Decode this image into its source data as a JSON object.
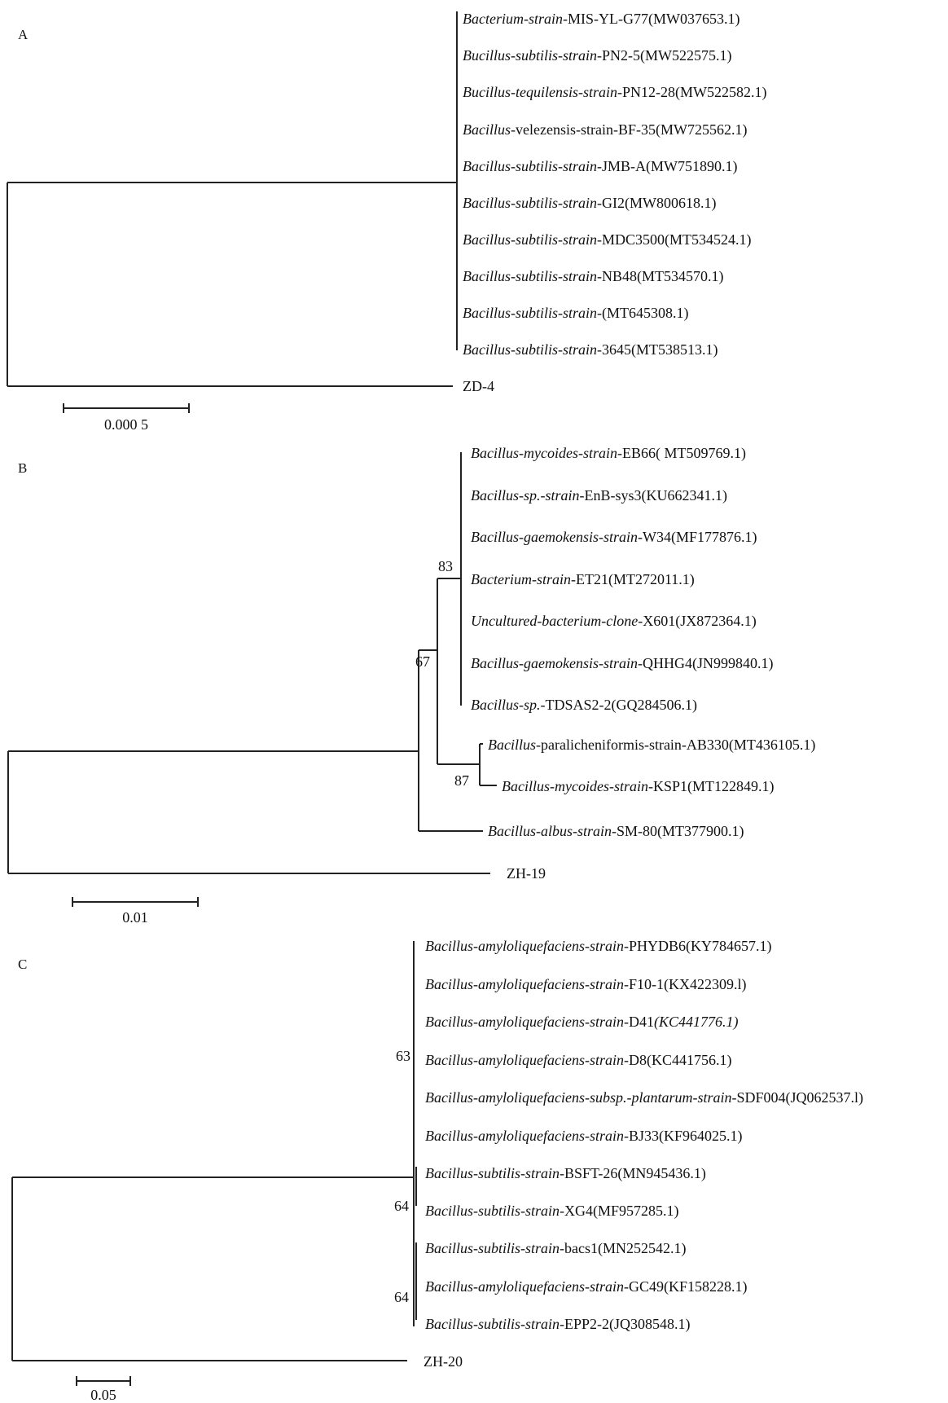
{
  "panels": [
    {
      "label": "A",
      "leaves": [
        {
          "name": "Bacterium-strain-",
          "rest": "MIS-YL-G77(MW037653.1)"
        },
        {
          "name": "Bucillus-subtilis-strain-",
          "rest": "PN2-5(MW522575.1)"
        },
        {
          "name": "Bucillus-tequilensis-strain-",
          "rest": "PN12-28(MW522582.1)"
        },
        {
          "name": "Bacillus-",
          "rest": "velezensis-strain-BF-35(MW725562.1)"
        },
        {
          "name": "Bacillus-subtilis-strain-",
          "rest": "JMB-A(MW751890.1)"
        },
        {
          "name": "Bacillus-subtilis-strain-",
          "rest": "GI2(MW800618.1)"
        },
        {
          "name": "Bacillus-subtilis-strain-",
          "rest": "MDC3500(MT534524.1)"
        },
        {
          "name": "Bacillus-subtilis-strain-",
          "rest": "NB48(MT534570.1)"
        },
        {
          "name": "Bacillus-subtilis-strain-",
          "rest": "(MT645308.1)"
        },
        {
          "name": "Bacillus-subtilis-strain-",
          "rest": "3645(MT538513.1)"
        }
      ],
      "outgroup": "ZD-4",
      "scale": "0.000 5"
    },
    {
      "label": "B",
      "leaves": [
        {
          "name": "Bacillus-mycoides-strain-",
          "rest": "EB66( MT509769.1)"
        },
        {
          "name": "Bacillus-sp.-strain-",
          "rest": "EnB-sys3(KU662341.1)"
        },
        {
          "name": "Bacillus-gaemokensis-strain-",
          "rest": "W34(MF177876.1)"
        },
        {
          "name": "Bacterium-strain-",
          "rest": "ET21(MT272011.1)"
        },
        {
          "name": "Uncultured-bacterium-clone-",
          "rest": "X601(JX872364.1)"
        },
        {
          "name": "Bacillus-gaemokensis-strain-",
          "rest": "QHHG4(JN999840.1)"
        },
        {
          "name": "Bacillus-sp.",
          "rest": "-TDSAS2-2(GQ284506.1)"
        },
        {
          "name": "Bacillus-",
          "rest": "paralicheniformis-strain-AB330(MT436105.1)"
        },
        {
          "name": "Bacillus-mycoides-strain-",
          "rest": "KSP1(MT122849.1)"
        },
        {
          "name": "Bacillus-albus-strain-",
          "rest": "SM-80(MT377900.1)"
        }
      ],
      "bootstraps": [
        "83",
        "67",
        "87"
      ],
      "outgroup": "ZH-19",
      "scale": "0.01"
    },
    {
      "label": "C",
      "leaves": [
        {
          "name": "Bacillus-amyloliquefaciens-strain-",
          "rest": "PHYDB6(KY784657.1)"
        },
        {
          "name": "Bacillus-amyloliquefaciens-strain-",
          "rest": "F10-1(KX422309.l)"
        },
        {
          "name": "Bacillus-amyloliquefaciens-strain-",
          "rest": "D41",
          "italic_tail": "(KC441776.1)"
        },
        {
          "name": "Bacillus-amyloliquefaciens-strain-",
          "rest": "D8(KC441756.1)"
        },
        {
          "name": "Bacillus-amyloliquefaciens-subsp.-plantarum-strain-",
          "rest": "SDF004(JQ062537.l)"
        },
        {
          "name": "Bacillus-amyloliquefaciens-strain-",
          "rest": "BJ33(KF964025.1)"
        },
        {
          "name": "Bacillus-subtilis-strain-",
          "rest": "BSFT-26(MN945436.1)"
        },
        {
          "name": "Bacillus-subtilis-strain-",
          "rest": "XG4(MF957285.1)"
        },
        {
          "name": "Bacillus-subtilis-strain-",
          "rest": "bacs1(MN252542.1)"
        },
        {
          "name": "Bacillus-amyloliquefaciens-strain-",
          "rest": "GC49(KF158228.1)"
        },
        {
          "name": "Bacillus-subtilis-strain-",
          "rest": "EPP2-2(JQ308548.1)"
        }
      ],
      "bootstraps": [
        "63",
        "64",
        "64"
      ],
      "outgroup": "ZH-20",
      "scale": "0.05"
    }
  ]
}
